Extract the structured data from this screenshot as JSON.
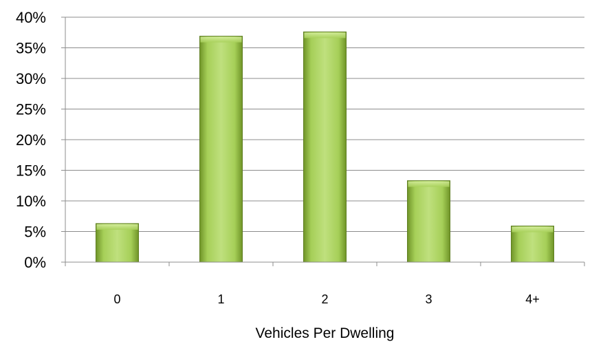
{
  "chart_data": {
    "type": "bar",
    "title": "",
    "xlabel": "Vehicles Per Dwelling",
    "ylabel": "",
    "categories": [
      "0",
      "1",
      "2",
      "3",
      "4+"
    ],
    "values": [
      6.3,
      36.9,
      37.6,
      13.3,
      5.9
    ],
    "ylim": [
      0,
      40
    ],
    "yticks": [
      "0%",
      "5%",
      "10%",
      "15%",
      "20%",
      "25%",
      "30%",
      "35%",
      "40%"
    ],
    "grid": true,
    "legend": "none",
    "colors": {
      "bar_light": "#b9dc74",
      "bar_mid": "#9bc84a",
      "bar_dark": "#6b8e24",
      "grid": "#888888"
    }
  }
}
